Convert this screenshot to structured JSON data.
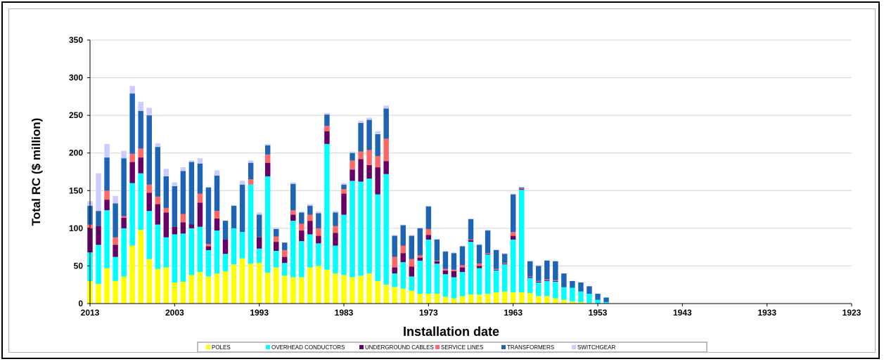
{
  "chart_data": {
    "type": "bar",
    "stacked": true,
    "xlabel": "Installation date",
    "ylabel": "Total RC ($ million)",
    "ylim": [
      0,
      350
    ],
    "yticks": [
      0,
      50,
      100,
      150,
      200,
      250,
      300,
      350
    ],
    "xlim": [
      2013,
      1923
    ],
    "xticks": [
      2013,
      2003,
      1993,
      1983,
      1973,
      1963,
      1953,
      1943,
      1933,
      1923
    ],
    "grid": true,
    "legend_position": "bottom",
    "x": [
      2013,
      2012,
      2011,
      2010,
      2009,
      2008,
      2007,
      2006,
      2005,
      2004,
      2003,
      2002,
      2001,
      2000,
      1999,
      1998,
      1997,
      1996,
      1995,
      1994,
      1993,
      1992,
      1991,
      1990,
      1989,
      1988,
      1987,
      1986,
      1985,
      1984,
      1983,
      1982,
      1981,
      1980,
      1979,
      1978,
      1977,
      1976,
      1975,
      1974,
      1973,
      1972,
      1971,
      1970,
      1969,
      1968,
      1967,
      1966,
      1965,
      1964,
      1963,
      1962,
      1961,
      1960,
      1959,
      1958,
      1957,
      1956,
      1955,
      1954,
      1953,
      1952
    ],
    "series": [
      {
        "name": "POLES",
        "color": "#ffff00",
        "values": [
          30,
          26,
          47,
          30,
          36,
          77,
          98,
          59,
          46,
          48,
          28,
          29,
          38,
          42,
          36,
          40,
          43,
          52,
          60,
          53,
          54,
          41,
          48,
          37,
          35,
          35,
          48,
          50,
          45,
          40,
          38,
          35,
          37,
          40,
          30,
          25,
          22,
          20,
          17,
          13,
          13,
          13,
          9,
          7,
          10,
          12,
          12,
          13,
          15,
          16,
          15,
          15,
          14,
          10,
          10,
          7,
          5,
          3,
          2,
          1,
          0,
          0
        ]
      },
      {
        "name": "OVERHEAD CONDUCTORS",
        "color": "#00ffff",
        "values": [
          38,
          52,
          77,
          32,
          64,
          83,
          75,
          64,
          59,
          40,
          64,
          64,
          62,
          60,
          35,
          57,
          23,
          48,
          35,
          105,
          19,
          128,
          22,
          17,
          75,
          48,
          44,
          30,
          167,
          37,
          80,
          128,
          125,
          126,
          115,
          147,
          18,
          35,
          19,
          44,
          72,
          40,
          30,
          28,
          32,
          70,
          35,
          52,
          29,
          36,
          70,
          136,
          20,
          18,
          20,
          22,
          17,
          18,
          14,
          12,
          5,
          2
        ]
      },
      {
        "name": "UNDERGROUND CABLES",
        "color": "#660066",
        "values": [
          32,
          25,
          14,
          16,
          14,
          28,
          21,
          24,
          27,
          33,
          10,
          15,
          5,
          32,
          5,
          16,
          19,
          0,
          0,
          0,
          15,
          18,
          12,
          8,
          8,
          14,
          18,
          10,
          17,
          17,
          28,
          15,
          30,
          18,
          36,
          17,
          8,
          12,
          13,
          4,
          6,
          3,
          5,
          8,
          6,
          2,
          3,
          1,
          1,
          1,
          5,
          1,
          1,
          1,
          1,
          1,
          1,
          0,
          0,
          0,
          0,
          0
        ]
      },
      {
        "name": "SERVICE LINES",
        "color": "#ff6666",
        "values": [
          5,
          0,
          12,
          10,
          2,
          11,
          12,
          11,
          10,
          6,
          0,
          11,
          0,
          12,
          3,
          10,
          0,
          0,
          0,
          7,
          0,
          11,
          7,
          9,
          6,
          9,
          8,
          10,
          7,
          9,
          6,
          12,
          10,
          20,
          15,
          30,
          14,
          10,
          10,
          3,
          8,
          1,
          2,
          2,
          3,
          1,
          3,
          1,
          1,
          1,
          5,
          1,
          1,
          1,
          1,
          1,
          0,
          0,
          0,
          0,
          0,
          0
        ]
      },
      {
        "name": "TRANSFORMERS",
        "color": "#1e64b4",
        "values": [
          25,
          20,
          44,
          45,
          77,
          80,
          50,
          92,
          66,
          42,
          54,
          57,
          83,
          40,
          75,
          47,
          25,
          30,
          63,
          22,
          30,
          12,
          10,
          10,
          35,
          15,
          12,
          20,
          15,
          18,
          6,
          10,
          38,
          40,
          29,
          40,
          28,
          27,
          31,
          36,
          30,
          28,
          23,
          22,
          25,
          27,
          25,
          30,
          25,
          12,
          50,
          1,
          20,
          20,
          25,
          25,
          17,
          9,
          12,
          10,
          8,
          6
        ]
      },
      {
        "name": "SWITCHGEAR",
        "color": "#ccccff",
        "values": [
          6,
          50,
          18,
          10,
          10,
          10,
          12,
          10,
          5,
          10,
          5,
          5,
          2,
          7,
          1,
          7,
          0,
          0,
          5,
          3,
          3,
          2,
          2,
          0,
          2,
          1,
          2,
          2,
          2,
          2,
          2,
          2,
          3,
          3,
          4,
          4,
          1,
          1,
          1,
          1,
          1,
          1,
          1,
          1,
          1,
          1,
          1,
          1,
          1,
          1,
          1,
          1,
          1,
          1,
          1,
          1,
          0,
          0,
          0,
          0,
          0,
          0
        ]
      }
    ]
  }
}
